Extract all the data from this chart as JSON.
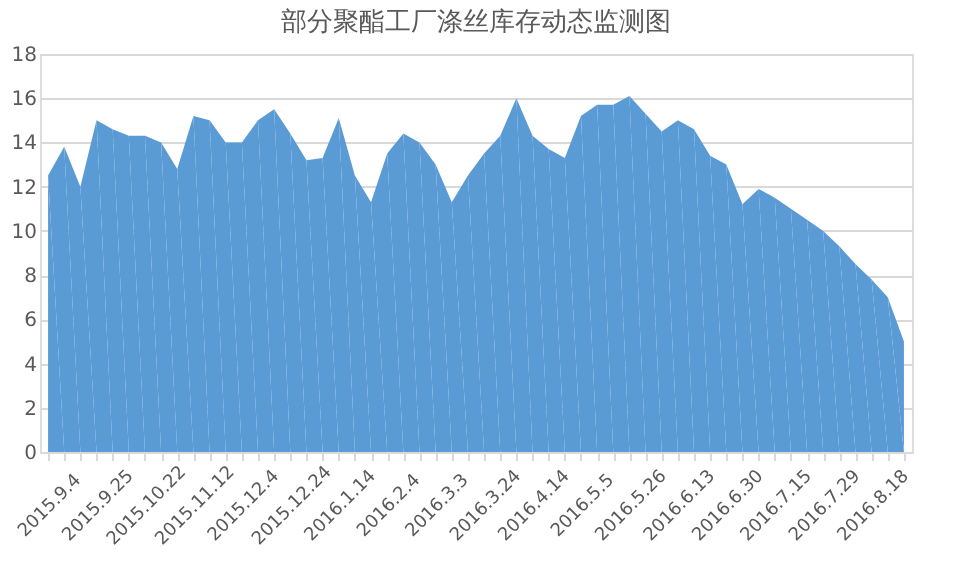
{
  "chart_data": {
    "type": "area",
    "title": "部分聚酯工厂涤丝库存动态监测图",
    "categories": [
      "2015.9.4",
      null,
      null,
      "2015.9.25",
      null,
      null,
      "2015.10.22",
      null,
      null,
      "2015.11.12",
      null,
      null,
      "2015.12.4",
      null,
      null,
      "2015.12.24",
      null,
      null,
      "2016.1.14",
      null,
      null,
      "2016.2.4",
      null,
      null,
      "2016.3.3",
      null,
      null,
      "2016.3.24",
      null,
      null,
      "2016.4.14",
      null,
      null,
      "2016.5.5",
      null,
      null,
      "2016.5.26",
      null,
      null,
      "2016.6.13",
      null,
      null,
      "2016.6.30",
      null,
      null,
      "2016.7.15",
      null,
      null,
      "2016.7.29",
      null,
      null,
      "2016.8.18",
      null,
      null
    ],
    "series": [
      {
        "color": "#5b9bd5",
        "values": [
          12.5,
          13.8,
          12.0,
          15.0,
          14.6,
          14.3,
          14.3,
          14.0,
          12.8,
          15.2,
          15.0,
          14.0,
          14.0,
          15.0,
          15.5,
          14.4,
          13.2,
          13.3,
          15.1,
          12.5,
          11.3,
          13.5,
          14.4,
          14.0,
          13.0,
          11.3,
          12.5,
          13.5,
          14.3,
          16.0,
          14.3,
          13.7,
          13.3,
          15.2,
          15.7,
          15.7,
          16.1,
          15.3,
          14.5,
          15.0,
          14.6,
          13.4,
          13.0,
          11.2,
          11.9,
          11.5,
          11.0,
          10.5,
          10.0,
          9.3,
          8.5,
          7.8,
          7.0,
          5.0
        ]
      }
    ],
    "ylim": [
      0,
      18
    ],
    "yticks": [
      0,
      2,
      4,
      6,
      8,
      10,
      12,
      14,
      16,
      18
    ],
    "grid": "y",
    "legend": false
  }
}
